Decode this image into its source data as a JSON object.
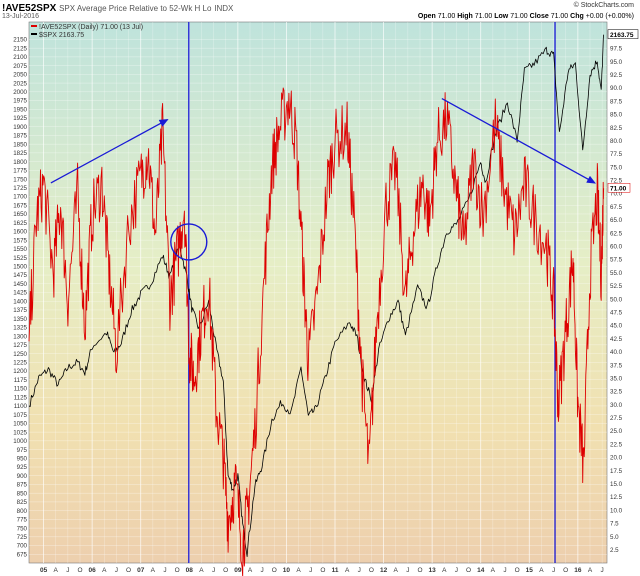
{
  "header": {
    "symbol": "!AVE52SPX",
    "description": "SPX Average Price Relative to 52-Wk H Lo",
    "exchange": "INDX",
    "date": "13-Jul-2016",
    "open_label": "Open",
    "open": "71.00",
    "high_label": "High",
    "high": "71.00",
    "low_label": "Low",
    "low": "71.00",
    "close_label": "Close",
    "close": "71.00",
    "chg_label": "Chg",
    "chg": "+0.00 (+0.00%)",
    "brand": "© StockCharts.com"
  },
  "legend": {
    "item1": "!AVE52SPX (Daily) 71.00 (13 Jul)",
    "item2": "$SPX 2163.75"
  },
  "last_labels": {
    "spx": "2163.75",
    "ave": "71.00"
  },
  "colors": {
    "spx": "#000000",
    "ave": "#dd0000",
    "annotation": "#1a1ad6"
  },
  "chart_data": {
    "type": "line",
    "left_axis": {
      "min": 650,
      "max": 2200,
      "ticks": [
        675,
        700,
        725,
        750,
        775,
        800,
        825,
        850,
        875,
        900,
        925,
        950,
        975,
        1000,
        1025,
        1050,
        1075,
        1100,
        1125,
        1150,
        1175,
        1200,
        1225,
        1250,
        1275,
        1300,
        1325,
        1350,
        1375,
        1400,
        1425,
        1450,
        1475,
        1500,
        1525,
        1550,
        1575,
        1600,
        1625,
        1650,
        1675,
        1700,
        1725,
        1750,
        1775,
        1800,
        1825,
        1850,
        1875,
        1900,
        1925,
        1950,
        1975,
        2000,
        2025,
        2050,
        2075,
        2100,
        2125,
        2150
      ]
    },
    "right_axis": {
      "min": 0,
      "max": 102.5,
      "ticks": [
        2.5,
        5,
        7.5,
        10,
        12.5,
        15,
        17.5,
        20,
        22.5,
        25,
        27.5,
        30,
        32.5,
        35,
        37.5,
        40,
        42.5,
        45,
        47.5,
        50,
        52.5,
        55,
        57.5,
        60,
        62.5,
        65,
        67.5,
        70,
        72.5,
        75,
        77.5,
        80,
        82.5,
        85,
        87.5,
        90,
        92.5,
        95,
        97.5,
        100
      ]
    },
    "x_axis": {
      "start": 2004.7,
      "end": 2016.6,
      "ticks": [
        {
          "t": 2005.0,
          "label": "05",
          "year": true
        },
        {
          "t": 2005.25,
          "label": "A"
        },
        {
          "t": 2005.5,
          "label": "J"
        },
        {
          "t": 2005.75,
          "label": "O"
        },
        {
          "t": 2006.0,
          "label": "06",
          "year": true
        },
        {
          "t": 2006.25,
          "label": "A"
        },
        {
          "t": 2006.5,
          "label": "J"
        },
        {
          "t": 2006.75,
          "label": "O"
        },
        {
          "t": 2007.0,
          "label": "07",
          "year": true
        },
        {
          "t": 2007.25,
          "label": "A"
        },
        {
          "t": 2007.5,
          "label": "J"
        },
        {
          "t": 2007.75,
          "label": "O"
        },
        {
          "t": 2008.0,
          "label": "08",
          "year": true
        },
        {
          "t": 2008.25,
          "label": "A"
        },
        {
          "t": 2008.5,
          "label": "J"
        },
        {
          "t": 2008.75,
          "label": "O"
        },
        {
          "t": 2009.0,
          "label": "09",
          "year": true
        },
        {
          "t": 2009.25,
          "label": "A"
        },
        {
          "t": 2009.5,
          "label": "J"
        },
        {
          "t": 2009.75,
          "label": "O"
        },
        {
          "t": 2010.0,
          "label": "10",
          "year": true
        },
        {
          "t": 2010.25,
          "label": "A"
        },
        {
          "t": 2010.5,
          "label": "J"
        },
        {
          "t": 2010.75,
          "label": "O"
        },
        {
          "t": 2011.0,
          "label": "11",
          "year": true
        },
        {
          "t": 2011.25,
          "label": "A"
        },
        {
          "t": 2011.5,
          "label": "J"
        },
        {
          "t": 2011.75,
          "label": "O"
        },
        {
          "t": 2012.0,
          "label": "12",
          "year": true
        },
        {
          "t": 2012.25,
          "label": "A"
        },
        {
          "t": 2012.5,
          "label": "J"
        },
        {
          "t": 2012.75,
          "label": "O"
        },
        {
          "t": 2013.0,
          "label": "13",
          "year": true
        },
        {
          "t": 2013.25,
          "label": "A"
        },
        {
          "t": 2013.5,
          "label": "J"
        },
        {
          "t": 2013.75,
          "label": "O"
        },
        {
          "t": 2014.0,
          "label": "14",
          "year": true
        },
        {
          "t": 2014.25,
          "label": "A"
        },
        {
          "t": 2014.5,
          "label": "J"
        },
        {
          "t": 2014.75,
          "label": "O"
        },
        {
          "t": 2015.0,
          "label": "15",
          "year": true
        },
        {
          "t": 2015.25,
          "label": "A"
        },
        {
          "t": 2015.5,
          "label": "J"
        },
        {
          "t": 2015.75,
          "label": "O"
        },
        {
          "t": 2016.0,
          "label": "16",
          "year": true
        },
        {
          "t": 2016.25,
          "label": "A"
        },
        {
          "t": 2016.5,
          "label": "J"
        }
      ]
    },
    "series": [
      {
        "name": "$SPX",
        "axis": "left",
        "points": [
          [
            2004.7,
            1100
          ],
          [
            2004.9,
            1180
          ],
          [
            2005.1,
            1205
          ],
          [
            2005.3,
            1160
          ],
          [
            2005.5,
            1210
          ],
          [
            2005.7,
            1225
          ],
          [
            2005.85,
            1195
          ],
          [
            2006.0,
            1270
          ],
          [
            2006.3,
            1310
          ],
          [
            2006.45,
            1250
          ],
          [
            2006.6,
            1280
          ],
          [
            2006.8,
            1370
          ],
          [
            2007.0,
            1420
          ],
          [
            2007.2,
            1450
          ],
          [
            2007.45,
            1530
          ],
          [
            2007.6,
            1470
          ],
          [
            2007.8,
            1560
          ],
          [
            2007.95,
            1470
          ],
          [
            2008.05,
            1380
          ],
          [
            2008.2,
            1320
          ],
          [
            2008.4,
            1400
          ],
          [
            2008.55,
            1270
          ],
          [
            2008.7,
            1170
          ],
          [
            2008.8,
            900
          ],
          [
            2008.9,
            860
          ],
          [
            2009.0,
            900
          ],
          [
            2009.1,
            760
          ],
          [
            2009.19,
            680
          ],
          [
            2009.35,
            870
          ],
          [
            2009.5,
            930
          ],
          [
            2009.7,
            1060
          ],
          [
            2009.9,
            1110
          ],
          [
            2010.1,
            1080
          ],
          [
            2010.3,
            1210
          ],
          [
            2010.45,
            1070
          ],
          [
            2010.6,
            1090
          ],
          [
            2010.8,
            1180
          ],
          [
            2011.0,
            1280
          ],
          [
            2011.3,
            1340
          ],
          [
            2011.45,
            1300
          ],
          [
            2011.6,
            1180
          ],
          [
            2011.75,
            1120
          ],
          [
            2011.9,
            1260
          ],
          [
            2012.1,
            1350
          ],
          [
            2012.3,
            1400
          ],
          [
            2012.45,
            1300
          ],
          [
            2012.7,
            1440
          ],
          [
            2012.9,
            1380
          ],
          [
            2013.1,
            1500
          ],
          [
            2013.3,
            1600
          ],
          [
            2013.5,
            1620
          ],
          [
            2013.75,
            1690
          ],
          [
            2014.0,
            1800
          ],
          [
            2014.1,
            1740
          ],
          [
            2014.3,
            1880
          ],
          [
            2014.55,
            1970
          ],
          [
            2014.75,
            1860
          ],
          [
            2014.9,
            2060
          ],
          [
            2015.1,
            2080
          ],
          [
            2015.35,
            2120
          ],
          [
            2015.5,
            2105
          ],
          [
            2015.62,
            1880
          ],
          [
            2015.8,
            2060
          ],
          [
            2015.95,
            2080
          ],
          [
            2016.1,
            1830
          ],
          [
            2016.25,
            2050
          ],
          [
            2016.4,
            2090
          ],
          [
            2016.48,
            2000
          ],
          [
            2016.53,
            2163.75
          ]
        ]
      },
      {
        "name": "!AVE52SPX",
        "axis": "right",
        "points": [
          [
            2004.7,
            42
          ],
          [
            2004.85,
            65
          ],
          [
            2005.0,
            72
          ],
          [
            2005.2,
            55
          ],
          [
            2005.35,
            68
          ],
          [
            2005.5,
            50
          ],
          [
            2005.7,
            70
          ],
          [
            2005.85,
            45
          ],
          [
            2006.0,
            66
          ],
          [
            2006.2,
            72
          ],
          [
            2006.35,
            55
          ],
          [
            2006.5,
            40
          ],
          [
            2006.75,
            64
          ],
          [
            2007.0,
            73
          ],
          [
            2007.15,
            78
          ],
          [
            2007.3,
            62
          ],
          [
            2007.45,
            82
          ],
          [
            2007.6,
            50
          ],
          [
            2007.75,
            58
          ],
          [
            2007.9,
            68
          ],
          [
            2008.0,
            40
          ],
          [
            2008.1,
            35
          ],
          [
            2008.25,
            45
          ],
          [
            2008.4,
            52
          ],
          [
            2008.55,
            30
          ],
          [
            2008.7,
            20
          ],
          [
            2008.8,
            8
          ],
          [
            2008.95,
            15
          ],
          [
            2009.1,
            3
          ],
          [
            2009.2,
            10
          ],
          [
            2009.35,
            25
          ],
          [
            2009.55,
            55
          ],
          [
            2009.7,
            75
          ],
          [
            2009.85,
            82
          ],
          [
            2010.05,
            88
          ],
          [
            2010.2,
            80
          ],
          [
            2010.35,
            55
          ],
          [
            2010.45,
            38
          ],
          [
            2010.65,
            52
          ],
          [
            2010.85,
            72
          ],
          [
            2011.0,
            80
          ],
          [
            2011.25,
            82
          ],
          [
            2011.4,
            64
          ],
          [
            2011.55,
            36
          ],
          [
            2011.7,
            18
          ],
          [
            2011.85,
            44
          ],
          [
            2012.05,
            68
          ],
          [
            2012.25,
            75
          ],
          [
            2012.45,
            50
          ],
          [
            2012.6,
            62
          ],
          [
            2012.8,
            72
          ],
          [
            2012.95,
            65
          ],
          [
            2013.1,
            80
          ],
          [
            2013.3,
            84
          ],
          [
            2013.5,
            70
          ],
          [
            2013.65,
            60
          ],
          [
            2013.85,
            76
          ],
          [
            2014.05,
            66
          ],
          [
            2014.3,
            83
          ],
          [
            2014.5,
            70
          ],
          [
            2014.7,
            62
          ],
          [
            2014.9,
            72
          ],
          [
            2015.1,
            66
          ],
          [
            2015.35,
            60
          ],
          [
            2015.5,
            50
          ],
          [
            2015.6,
            30
          ],
          [
            2015.75,
            44
          ],
          [
            2015.9,
            58
          ],
          [
            2016.0,
            30
          ],
          [
            2016.12,
            18
          ],
          [
            2016.25,
            55
          ],
          [
            2016.4,
            70
          ],
          [
            2016.48,
            55
          ],
          [
            2016.53,
            71
          ]
        ]
      }
    ],
    "annotations": {
      "vertical_lines_at": [
        2007.99,
        2015.53
      ],
      "circle_at": {
        "t": 2007.99,
        "value": 1570
      },
      "arrows": [
        {
          "from": {
            "t": 2005.15,
            "right_value": 72
          },
          "to": {
            "t": 2007.55,
            "right_value": 84
          }
        },
        {
          "from": {
            "t": 2013.2,
            "right_value": 88
          },
          "to": {
            "t": 2016.35,
            "right_value": 72
          }
        }
      ]
    }
  }
}
